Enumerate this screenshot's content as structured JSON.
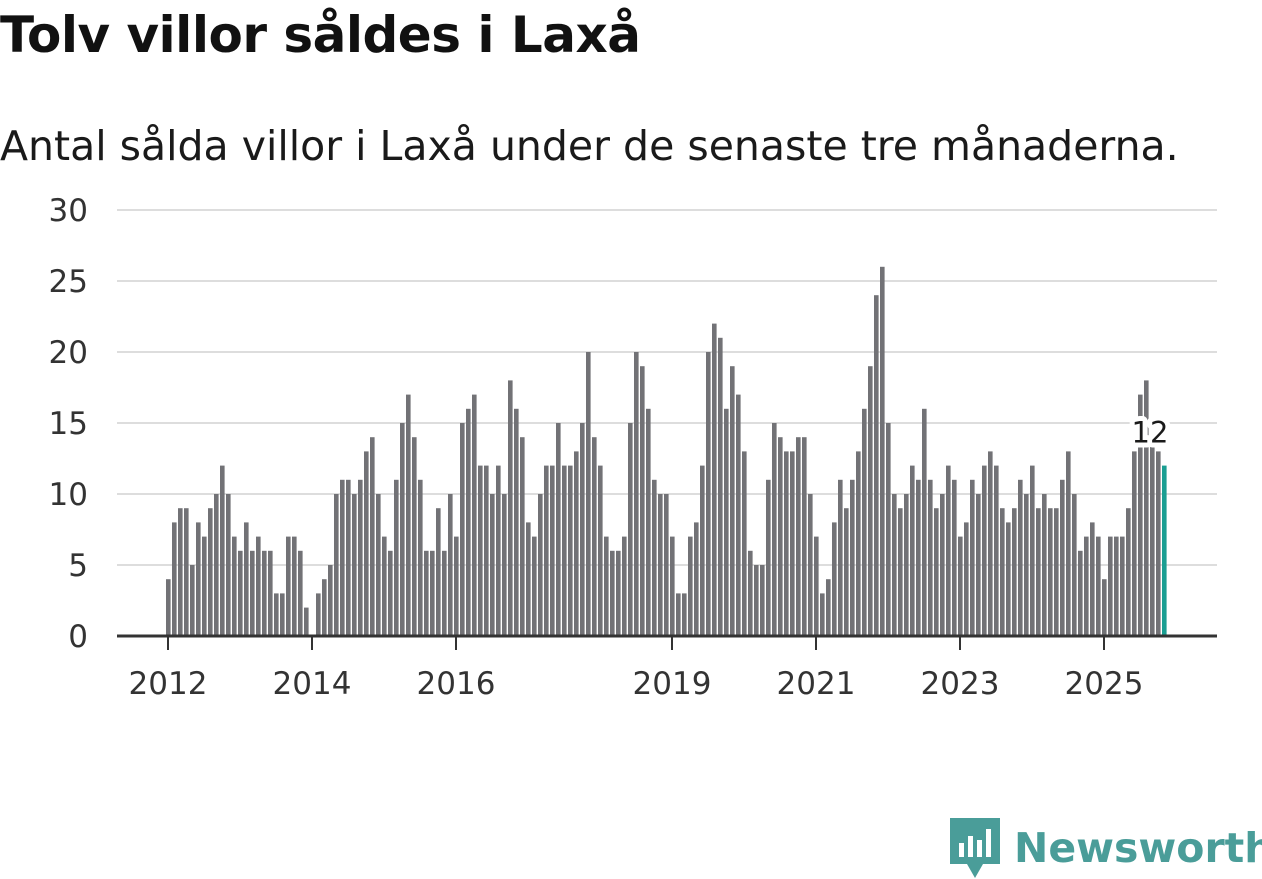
{
  "chart_data": {
    "type": "bar",
    "title": "Tolv villor såldes i Laxå",
    "subtitle": "Antal sålda villor i Laxå under de senaste tre månaderna.",
    "xlabel": "",
    "ylabel": "",
    "ylim": [
      0,
      30
    ],
    "yticks": [
      "0",
      "5",
      "10",
      "15",
      "20",
      "25",
      "30"
    ],
    "xticks": [
      {
        "label": "2012",
        "index": 0
      },
      {
        "label": "2014",
        "index": 24
      },
      {
        "label": "2016",
        "index": 48
      },
      {
        "label": "2019",
        "index": 84
      },
      {
        "label": "2021",
        "index": 108
      },
      {
        "label": "2023",
        "index": 132
      },
      {
        "label": "2025",
        "index": 156
      }
    ],
    "first_period": "2012-01",
    "values": [
      4,
      8,
      9,
      9,
      5,
      8,
      7,
      9,
      10,
      12,
      10,
      7,
      6,
      8,
      6,
      7,
      6,
      6,
      3,
      3,
      7,
      7,
      6,
      2,
      0,
      3,
      4,
      5,
      10,
      11,
      11,
      10,
      11,
      13,
      14,
      10,
      7,
      6,
      11,
      15,
      17,
      14,
      11,
      6,
      6,
      9,
      6,
      10,
      7,
      15,
      16,
      17,
      12,
      12,
      10,
      12,
      10,
      18,
      16,
      14,
      8,
      7,
      10,
      12,
      12,
      15,
      12,
      12,
      13,
      15,
      20,
      14,
      12,
      7,
      6,
      6,
      7,
      15,
      20,
      19,
      16,
      11,
      10,
      10,
      7,
      3,
      3,
      7,
      8,
      12,
      20,
      22,
      21,
      16,
      19,
      17,
      13,
      6,
      5,
      5,
      11,
      15,
      14,
      13,
      13,
      14,
      14,
      10,
      7,
      3,
      4,
      8,
      11,
      9,
      11,
      13,
      16,
      19,
      24,
      26,
      15,
      10,
      9,
      10,
      12,
      11,
      16,
      11,
      9,
      10,
      12,
      11,
      7,
      8,
      11,
      10,
      12,
      13,
      12,
      9,
      8,
      9,
      11,
      10,
      12,
      9,
      10,
      9,
      9,
      11,
      13,
      10,
      6,
      7,
      8,
      7,
      4,
      7,
      7,
      7,
      9,
      13,
      17,
      18,
      14,
      13,
      12
    ],
    "highlight_index": 166,
    "highlight_label": "12",
    "bar_color": "#727276",
    "highlight_color": "#1a9e92",
    "grid_color": "#dddddd",
    "axis_color": "#333333"
  },
  "brand": {
    "name": "Newsworthy",
    "color": "#4a9d99"
  }
}
